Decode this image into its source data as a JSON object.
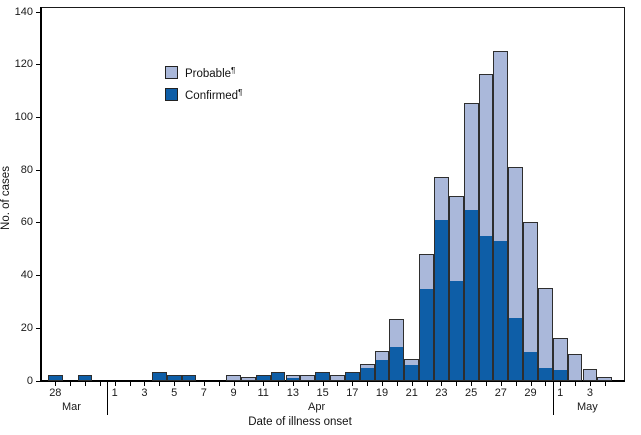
{
  "figure": {
    "ylabel": "No. of cases",
    "xlabel": "Date of illness onset"
  },
  "legend": {
    "items": [
      {
        "label": "Probable",
        "footnote_mark": "¶",
        "color": "#aab8da"
      },
      {
        "label": "Confirmed",
        "footnote_mark": "¶",
        "color": "#0e5ea7"
      }
    ]
  },
  "chart_data": {
    "type": "bar",
    "stacked": true,
    "title": "",
    "ylabel": "No. of cases",
    "xlabel": "Date of illness onset",
    "ylim": [
      0,
      140
    ],
    "yticks": [
      0,
      20,
      40,
      60,
      80,
      100,
      120,
      140
    ],
    "grid": false,
    "legend_position": "upper-left-inside",
    "categories": [
      "Mar 28",
      "Mar 29",
      "Mar 30",
      "Mar 31",
      "Apr 1",
      "Apr 2",
      "Apr 3",
      "Apr 4",
      "Apr 5",
      "Apr 6",
      "Apr 7",
      "Apr 8",
      "Apr 9",
      "Apr 10",
      "Apr 11",
      "Apr 12",
      "Apr 13",
      "Apr 14",
      "Apr 15",
      "Apr 16",
      "Apr 17",
      "Apr 18",
      "Apr 19",
      "Apr 20",
      "Apr 21",
      "Apr 22",
      "Apr 23",
      "Apr 24",
      "Apr 25",
      "Apr 26",
      "Apr 27",
      "Apr 28",
      "Apr 29",
      "Apr 30",
      "May 1",
      "May 2",
      "May 3",
      "May 4"
    ],
    "x_tick_labels": [
      "28",
      "",
      "",
      "",
      "1",
      "",
      "3",
      "",
      "5",
      "",
      "7",
      "",
      "9",
      "",
      "11",
      "",
      "13",
      "",
      "15",
      "",
      "17",
      "",
      "19",
      "",
      "21",
      "",
      "23",
      "",
      "25",
      "",
      "27",
      "",
      "29",
      "",
      "1",
      "",
      "3",
      ""
    ],
    "months": [
      {
        "label": "Mar",
        "span": "Mar 28 - Mar 31"
      },
      {
        "label": "Apr",
        "span": "Apr 1 - Apr 30"
      },
      {
        "label": "May",
        "span": "May 1 - May 4"
      }
    ],
    "month_divider_after_index": [
      3,
      33
    ],
    "series": [
      {
        "name": "Confirmed",
        "color": "#0e5ea7",
        "values": [
          2,
          0,
          2,
          0,
          0,
          0,
          0,
          3,
          2,
          2,
          0,
          0,
          0,
          0,
          2,
          3,
          1,
          0,
          3,
          0,
          3,
          5,
          8,
          13,
          6,
          35,
          61,
          38,
          65,
          55,
          53,
          24,
          11,
          5,
          4,
          0,
          0,
          0
        ]
      },
      {
        "name": "Probable",
        "color": "#aab8da",
        "values": [
          0,
          0,
          0,
          0,
          0,
          0,
          0,
          0,
          0,
          0,
          0,
          0,
          2,
          1,
          0,
          0,
          1,
          2,
          0,
          2,
          0,
          1,
          3,
          10,
          2,
          13,
          16,
          32,
          40,
          61,
          72,
          57,
          49,
          30,
          12,
          10,
          4,
          1
        ]
      }
    ]
  }
}
